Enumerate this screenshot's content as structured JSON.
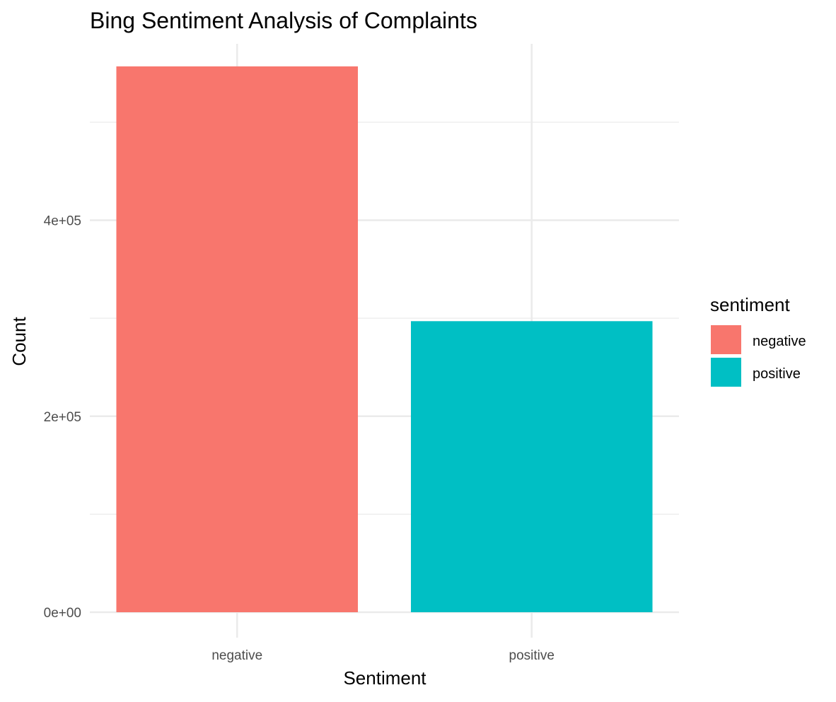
{
  "chart_data": {
    "type": "bar",
    "title": "Bing Sentiment Analysis of Complaints",
    "xlabel": "Sentiment",
    "ylabel": "Count",
    "categories": [
      "negative",
      "positive"
    ],
    "values": [
      557000,
      297000
    ],
    "colors": [
      "#F8766D",
      "#00BFC4"
    ],
    "ylim": [
      0,
      580000
    ],
    "y_major_ticks": [
      0,
      200000,
      400000
    ],
    "y_tick_labels": [
      "0e+00",
      "2e+05",
      "4e+05"
    ],
    "y_minor_ticks": [
      100000,
      300000,
      500000
    ],
    "grid": true,
    "legend": {
      "title": "sentiment",
      "placement": "right",
      "items": [
        {
          "label": "negative",
          "color": "#F8766D"
        },
        {
          "label": "positive",
          "color": "#00BFC4"
        }
      ]
    }
  }
}
